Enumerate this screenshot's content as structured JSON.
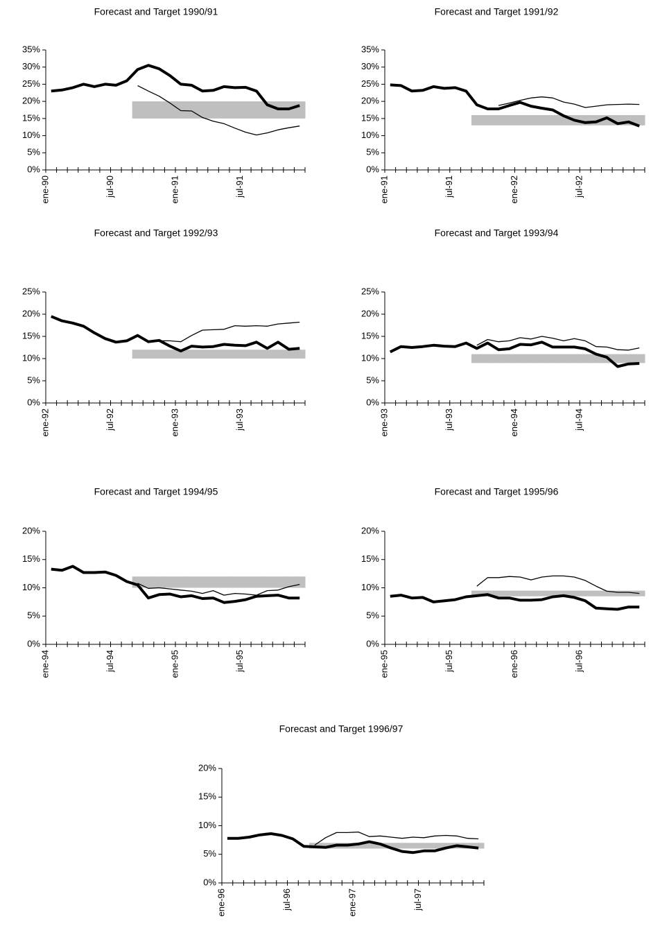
{
  "chart_data": [
    {
      "type": "line",
      "title": "Forecast and Target 1990/91",
      "categories": [
        "ene-90",
        null,
        null,
        null,
        null,
        null,
        "jul-90",
        null,
        null,
        null,
        null,
        null,
        "ene-91",
        null,
        null,
        null,
        null,
        null,
        "jul-91",
        null,
        null,
        null,
        null,
        null
      ],
      "ylim": [
        0,
        35
      ],
      "yticks": [
        {
          "value": 0,
          "label": "0%"
        },
        {
          "value": 5,
          "label": "5%"
        },
        {
          "value": 10,
          "label": "10%"
        },
        {
          "value": 15,
          "label": "15%"
        },
        {
          "value": 20,
          "label": "20%"
        },
        {
          "value": 25,
          "label": "25%"
        },
        {
          "value": 30,
          "label": "30%"
        },
        {
          "value": 35,
          "label": "35%"
        }
      ],
      "band": {
        "color": "#bfbfbf",
        "low": [
          null,
          null,
          null,
          null,
          null,
          null,
          null,
          null,
          15,
          15,
          15,
          15,
          15,
          15,
          15,
          15,
          15,
          15,
          15,
          15,
          15,
          15,
          15,
          15
        ],
        "high": [
          null,
          null,
          null,
          null,
          null,
          null,
          null,
          null,
          20,
          20,
          20,
          20,
          20,
          20,
          20,
          20,
          20,
          20,
          20,
          20,
          20,
          20,
          20,
          20
        ]
      },
      "series": [
        {
          "color": "#000000",
          "width": 4,
          "values": [
            23,
            23.3,
            24,
            25,
            24.3,
            25,
            24.7,
            26,
            29.3,
            30.5,
            29.5,
            27.5,
            25,
            24.7,
            23,
            23.2,
            24.3,
            24,
            24.1,
            23,
            19,
            17.8,
            17.8,
            18.8
          ]
        },
        {
          "color": "#000000",
          "width": 1.3,
          "values": [
            null,
            null,
            null,
            null,
            null,
            null,
            null,
            null,
            24.6,
            23,
            21.5,
            19.5,
            17.3,
            17.2,
            15.3,
            14.2,
            13.5,
            12.2,
            11,
            10.2,
            10.8,
            11.7,
            12.3,
            12.8
          ]
        }
      ]
    },
    {
      "type": "line",
      "title": "Forecast and Target 1991/92",
      "categories": [
        "ene-91",
        null,
        null,
        null,
        null,
        null,
        "jul-91",
        null,
        null,
        null,
        null,
        null,
        "ene-92",
        null,
        null,
        null,
        null,
        null,
        "jul-92",
        null,
        null,
        null,
        null,
        null
      ],
      "ylim": [
        0,
        35
      ],
      "yticks": [
        {
          "value": 0,
          "label": "0%"
        },
        {
          "value": 5,
          "label": "5%"
        },
        {
          "value": 10,
          "label": "10%"
        },
        {
          "value": 15,
          "label": "15%"
        },
        {
          "value": 20,
          "label": "20%"
        },
        {
          "value": 25,
          "label": "25%"
        },
        {
          "value": 30,
          "label": "30%"
        },
        {
          "value": 35,
          "label": "35%"
        }
      ],
      "band": {
        "color": "#bfbfbf",
        "low": [
          null,
          null,
          null,
          null,
          null,
          null,
          null,
          null,
          13,
          13,
          13,
          13,
          13,
          13,
          13,
          13,
          13,
          13,
          13,
          13,
          13,
          13,
          13,
          13
        ],
        "high": [
          null,
          null,
          null,
          null,
          null,
          null,
          null,
          null,
          16,
          16,
          16,
          16,
          16,
          16,
          16,
          16,
          16,
          16,
          16,
          16,
          16,
          16,
          16,
          16
        ]
      },
      "series": [
        {
          "color": "#000000",
          "width": 4,
          "values": [
            24.8,
            24.6,
            23,
            23.2,
            24.3,
            23.8,
            24,
            23,
            19,
            17.8,
            17.8,
            18.8,
            19.7,
            18.6,
            18,
            17.5,
            15.8,
            14.5,
            13.8,
            14,
            15.2,
            13.5,
            14,
            12.8
          ]
        },
        {
          "color": "#000000",
          "width": 1.3,
          "values": [
            null,
            null,
            null,
            null,
            null,
            null,
            null,
            null,
            null,
            null,
            18.8,
            19.5,
            20.3,
            21,
            21.3,
            21,
            19.8,
            19.2,
            18.2,
            18.6,
            19,
            19.1,
            19.2,
            19.1
          ]
        }
      ]
    },
    {
      "type": "line",
      "title": "Forecast and Target 1992/93",
      "categories": [
        "ene-92",
        null,
        null,
        null,
        null,
        null,
        "jul-92",
        null,
        null,
        null,
        null,
        null,
        "ene-93",
        null,
        null,
        null,
        null,
        null,
        "jul-93",
        null,
        null,
        null,
        null,
        null
      ],
      "ylim": [
        0,
        25
      ],
      "yticks": [
        {
          "value": 0,
          "label": "0%"
        },
        {
          "value": 5,
          "label": "5%"
        },
        {
          "value": 10,
          "label": "10%"
        },
        {
          "value": 15,
          "label": "15%"
        },
        {
          "value": 20,
          "label": "20%"
        },
        {
          "value": 25,
          "label": "25%"
        }
      ],
      "band": {
        "color": "#bfbfbf",
        "low": [
          null,
          null,
          null,
          null,
          null,
          null,
          null,
          null,
          10,
          10,
          10,
          10,
          10,
          10,
          10,
          10,
          10,
          10,
          10,
          10,
          10,
          10,
          10,
          10
        ],
        "high": [
          null,
          null,
          null,
          null,
          null,
          null,
          null,
          null,
          12,
          12,
          12,
          12,
          12,
          12,
          12,
          12,
          12,
          12,
          12,
          12,
          12,
          12,
          12,
          12
        ]
      },
      "series": [
        {
          "color": "#000000",
          "width": 4,
          "values": [
            19.5,
            18.5,
            18,
            17.3,
            15.8,
            14.5,
            13.7,
            14,
            15.2,
            13.8,
            14.1,
            12.8,
            11.7,
            12.8,
            12.6,
            12.7,
            13.2,
            13,
            12.9,
            13.7,
            12.3,
            13.7,
            12.1,
            12.3
          ]
        },
        {
          "color": "#000000",
          "width": 1.3,
          "values": [
            null,
            null,
            null,
            null,
            null,
            null,
            null,
            null,
            15,
            13.8,
            14,
            14,
            13.8,
            15.2,
            16.4,
            16.5,
            16.6,
            17.4,
            17.3,
            17.4,
            17.3,
            17.8,
            18,
            18.2
          ]
        }
      ]
    },
    {
      "type": "line",
      "title": "Forecast and Target 1993/94",
      "categories": [
        "ene-93",
        null,
        null,
        null,
        null,
        null,
        "jul-93",
        null,
        null,
        null,
        null,
        null,
        "ene-94",
        null,
        null,
        null,
        null,
        null,
        "jul-94",
        null,
        null,
        null,
        null,
        null
      ],
      "ylim": [
        0,
        25
      ],
      "yticks": [
        {
          "value": 0,
          "label": "0%"
        },
        {
          "value": 5,
          "label": "5%"
        },
        {
          "value": 10,
          "label": "10%"
        },
        {
          "value": 15,
          "label": "15%"
        },
        {
          "value": 20,
          "label": "20%"
        },
        {
          "value": 25,
          "label": "25%"
        }
      ],
      "band": {
        "color": "#bfbfbf",
        "low": [
          null,
          null,
          null,
          null,
          null,
          null,
          null,
          null,
          9,
          9,
          9,
          9,
          9,
          9,
          9,
          9,
          9,
          9,
          9,
          9,
          9,
          9,
          9,
          9
        ],
        "high": [
          null,
          null,
          null,
          null,
          null,
          null,
          null,
          null,
          11,
          11,
          11,
          11,
          11,
          11,
          11,
          11,
          11,
          11,
          11,
          11,
          11,
          11,
          11,
          11
        ]
      },
      "series": [
        {
          "color": "#000000",
          "width": 4,
          "values": [
            11.5,
            12.7,
            12.5,
            12.7,
            13,
            12.8,
            12.7,
            13.5,
            12.3,
            13.5,
            12,
            12.2,
            13.2,
            13.1,
            13.7,
            12.6,
            12.6,
            12.6,
            12.2,
            11,
            10.3,
            8.2,
            8.8,
            8.9
          ]
        },
        {
          "color": "#000000",
          "width": 1.3,
          "values": [
            null,
            null,
            null,
            null,
            null,
            null,
            null,
            null,
            13,
            14.3,
            13.8,
            14,
            14.7,
            14.4,
            15,
            14.6,
            14,
            14.5,
            14,
            12.7,
            12.6,
            12,
            11.9,
            12.4
          ]
        }
      ]
    },
    {
      "type": "line",
      "title": "Forecast and Target 1994/95",
      "categories": [
        "ene-94",
        null,
        null,
        null,
        null,
        null,
        "jul-94",
        null,
        null,
        null,
        null,
        null,
        "ene-95",
        null,
        null,
        null,
        null,
        null,
        "jul-95",
        null,
        null,
        null,
        null,
        null
      ],
      "ylim": [
        0,
        20
      ],
      "yticks": [
        {
          "value": 0,
          "label": "0%"
        },
        {
          "value": 5,
          "label": "5%"
        },
        {
          "value": 10,
          "label": "10%"
        },
        {
          "value": 15,
          "label": "15%"
        },
        {
          "value": 20,
          "label": "20%"
        }
      ],
      "band": {
        "color": "#bfbfbf",
        "low": [
          null,
          null,
          null,
          null,
          null,
          null,
          null,
          null,
          10,
          10,
          10,
          10,
          10,
          10,
          10,
          10,
          10,
          10,
          10,
          10,
          10,
          10,
          10,
          10
        ],
        "high": [
          null,
          null,
          null,
          null,
          null,
          null,
          null,
          null,
          12,
          12,
          12,
          12,
          12,
          12,
          12,
          12,
          12,
          12,
          12,
          12,
          12,
          12,
          12,
          12
        ]
      },
      "series": [
        {
          "color": "#000000",
          "width": 4,
          "values": [
            13.3,
            13.1,
            13.8,
            12.7,
            12.7,
            12.8,
            12.2,
            11.1,
            10.5,
            8.2,
            8.8,
            8.9,
            8.4,
            8.6,
            8.1,
            8.2,
            7.4,
            7.6,
            7.9,
            8.5,
            8.6,
            8.7,
            8.2,
            8.2
          ]
        },
        {
          "color": "#000000",
          "width": 1.3,
          "values": [
            null,
            null,
            null,
            null,
            null,
            null,
            null,
            null,
            10.8,
            9.9,
            10,
            9.8,
            9.6,
            9.4,
            9,
            9.5,
            8.7,
            9,
            8.9,
            8.7,
            9.5,
            9.6,
            10.2,
            10.6
          ]
        }
      ]
    },
    {
      "type": "line",
      "title": "Forecast and Target 1995/96",
      "categories": [
        "ene-95",
        null,
        null,
        null,
        null,
        null,
        "jul-95",
        null,
        null,
        null,
        null,
        null,
        "ene-96",
        null,
        null,
        null,
        null,
        null,
        "jul-96",
        null,
        null,
        null,
        null,
        null
      ],
      "ylim": [
        0,
        20
      ],
      "yticks": [
        {
          "value": 0,
          "label": "0%"
        },
        {
          "value": 5,
          "label": "5%"
        },
        {
          "value": 10,
          "label": "10%"
        },
        {
          "value": 15,
          "label": "15%"
        },
        {
          "value": 20,
          "label": "20%"
        }
      ],
      "band": {
        "color": "#bfbfbf",
        "low": [
          null,
          null,
          null,
          null,
          null,
          null,
          null,
          null,
          8.5,
          8.5,
          8.5,
          8.5,
          8.5,
          8.5,
          8.5,
          8.5,
          8.5,
          8.5,
          8.5,
          8.5,
          8.5,
          8.5,
          8.5,
          8.5
        ],
        "high": [
          null,
          null,
          null,
          null,
          null,
          null,
          null,
          null,
          9.5,
          9.5,
          9.5,
          9.5,
          9.5,
          9.5,
          9.5,
          9.5,
          9.5,
          9.5,
          9.5,
          9.5,
          9.5,
          9.5,
          9.5,
          9.5
        ]
      },
      "series": [
        {
          "color": "#000000",
          "width": 4,
          "values": [
            8.5,
            8.7,
            8.2,
            8.3,
            7.5,
            7.7,
            7.9,
            8.4,
            8.6,
            8.8,
            8.2,
            8.2,
            7.8,
            7.8,
            7.9,
            8.4,
            8.6,
            8.3,
            7.7,
            6.4,
            6.3,
            6.2,
            6.6,
            6.6
          ]
        },
        {
          "color": "#000000",
          "width": 1.3,
          "values": [
            null,
            null,
            null,
            null,
            null,
            null,
            null,
            null,
            10.3,
            11.8,
            11.8,
            12,
            11.9,
            11.4,
            11.9,
            12.1,
            12.1,
            11.9,
            11.3,
            10.3,
            9.4,
            9.2,
            9.2,
            9
          ]
        }
      ]
    },
    {
      "type": "line",
      "title": "Forecast and Target 1996/97",
      "categories": [
        "ene-96",
        null,
        null,
        null,
        null,
        null,
        "jul-96",
        null,
        null,
        null,
        null,
        null,
        "ene-97",
        null,
        null,
        null,
        null,
        null,
        "jul-97",
        null,
        null,
        null,
        null,
        null
      ],
      "ylim": [
        0,
        20
      ],
      "yticks": [
        {
          "value": 0,
          "label": "0%"
        },
        {
          "value": 5,
          "label": "5%"
        },
        {
          "value": 10,
          "label": "10%"
        },
        {
          "value": 15,
          "label": "15%"
        },
        {
          "value": 20,
          "label": "20%"
        }
      ],
      "band": {
        "color": "#bfbfbf",
        "low": [
          null,
          null,
          null,
          null,
          null,
          null,
          null,
          null,
          6,
          6,
          6,
          6,
          6,
          6,
          6,
          6,
          6,
          6,
          6,
          6,
          6,
          6,
          6,
          6
        ],
        "high": [
          null,
          null,
          null,
          null,
          null,
          null,
          null,
          null,
          7,
          7,
          7,
          7,
          7,
          7,
          7,
          7,
          7,
          7,
          7,
          7,
          7,
          7,
          7,
          7
        ]
      },
      "series": [
        {
          "color": "#000000",
          "width": 4,
          "values": [
            7.8,
            7.8,
            8,
            8.4,
            8.6,
            8.3,
            7.7,
            6.4,
            6.3,
            6.2,
            6.6,
            6.6,
            6.8,
            7.2,
            6.8,
            6.1,
            5.5,
            5.3,
            5.6,
            5.6,
            6.1,
            6.5,
            6.3,
            6.1
          ]
        },
        {
          "color": "#000000",
          "width": 1.3,
          "values": [
            null,
            null,
            null,
            null,
            null,
            null,
            null,
            null,
            6.6,
            7.9,
            8.8,
            8.8,
            8.9,
            8.1,
            8.2,
            8,
            7.8,
            8,
            7.9,
            8.2,
            8.3,
            8.2,
            7.8,
            7.7
          ]
        }
      ]
    }
  ]
}
